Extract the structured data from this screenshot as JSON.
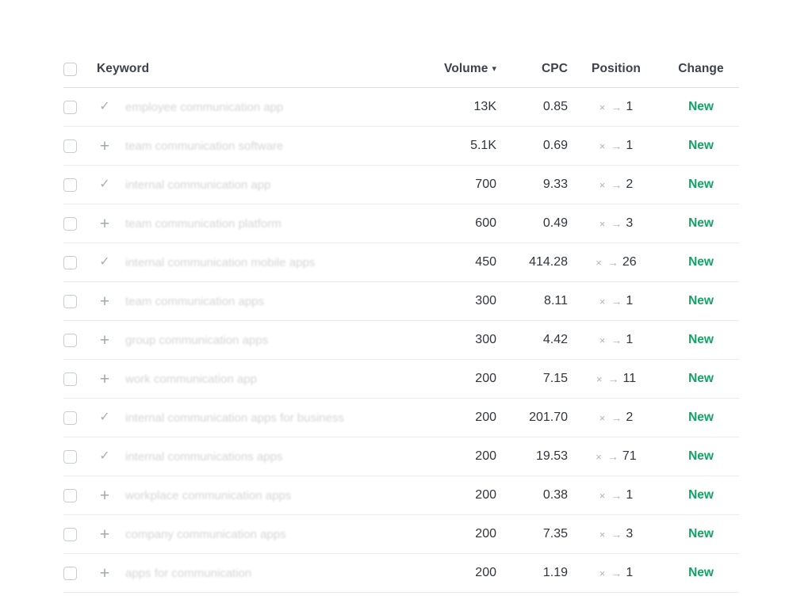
{
  "table": {
    "header": {
      "keyword": "Keyword",
      "volume": "Volume",
      "cpc": "CPC",
      "position": "Position",
      "change": "Change"
    },
    "icons": {
      "sort_desc": "▾",
      "check": "✓",
      "plus": "+",
      "position_from": "×",
      "position_arrow": "→"
    },
    "colors": {
      "new_green": "#12a364",
      "header_text": "#3c414b",
      "number_text": "#30353d"
    },
    "rows": [
      {
        "icon": "check",
        "keyword": "employee communication app",
        "volume": "13K",
        "cpc": "0.85",
        "position": "1",
        "change": "New"
      },
      {
        "icon": "plus",
        "keyword": "team communication software",
        "volume": "5.1K",
        "cpc": "0.69",
        "position": "1",
        "change": "New"
      },
      {
        "icon": "check",
        "keyword": "internal communication app",
        "volume": "700",
        "cpc": "9.33",
        "position": "2",
        "change": "New"
      },
      {
        "icon": "plus",
        "keyword": "team communication platform",
        "volume": "600",
        "cpc": "0.49",
        "position": "3",
        "change": "New"
      },
      {
        "icon": "check",
        "keyword": "internal communication mobile apps",
        "volume": "450",
        "cpc": "414.28",
        "position": "26",
        "change": "New"
      },
      {
        "icon": "plus",
        "keyword": "team communication apps",
        "volume": "300",
        "cpc": "8.11",
        "position": "1",
        "change": "New"
      },
      {
        "icon": "plus",
        "keyword": "group communication apps",
        "volume": "300",
        "cpc": "4.42",
        "position": "1",
        "change": "New"
      },
      {
        "icon": "plus",
        "keyword": "work communication app",
        "volume": "200",
        "cpc": "7.15",
        "position": "11",
        "change": "New"
      },
      {
        "icon": "check",
        "keyword": "internal communication apps for business",
        "volume": "200",
        "cpc": "201.70",
        "position": "2",
        "change": "New"
      },
      {
        "icon": "check",
        "keyword": "internal communications apps",
        "volume": "200",
        "cpc": "19.53",
        "position": "71",
        "change": "New"
      },
      {
        "icon": "plus",
        "keyword": "workplace communication apps",
        "volume": "200",
        "cpc": "0.38",
        "position": "1",
        "change": "New"
      },
      {
        "icon": "plus",
        "keyword": "company communication apps",
        "volume": "200",
        "cpc": "7.35",
        "position": "3",
        "change": "New"
      },
      {
        "icon": "plus",
        "keyword": "apps for communication",
        "volume": "200",
        "cpc": "1.19",
        "position": "1",
        "change": "New"
      }
    ]
  }
}
